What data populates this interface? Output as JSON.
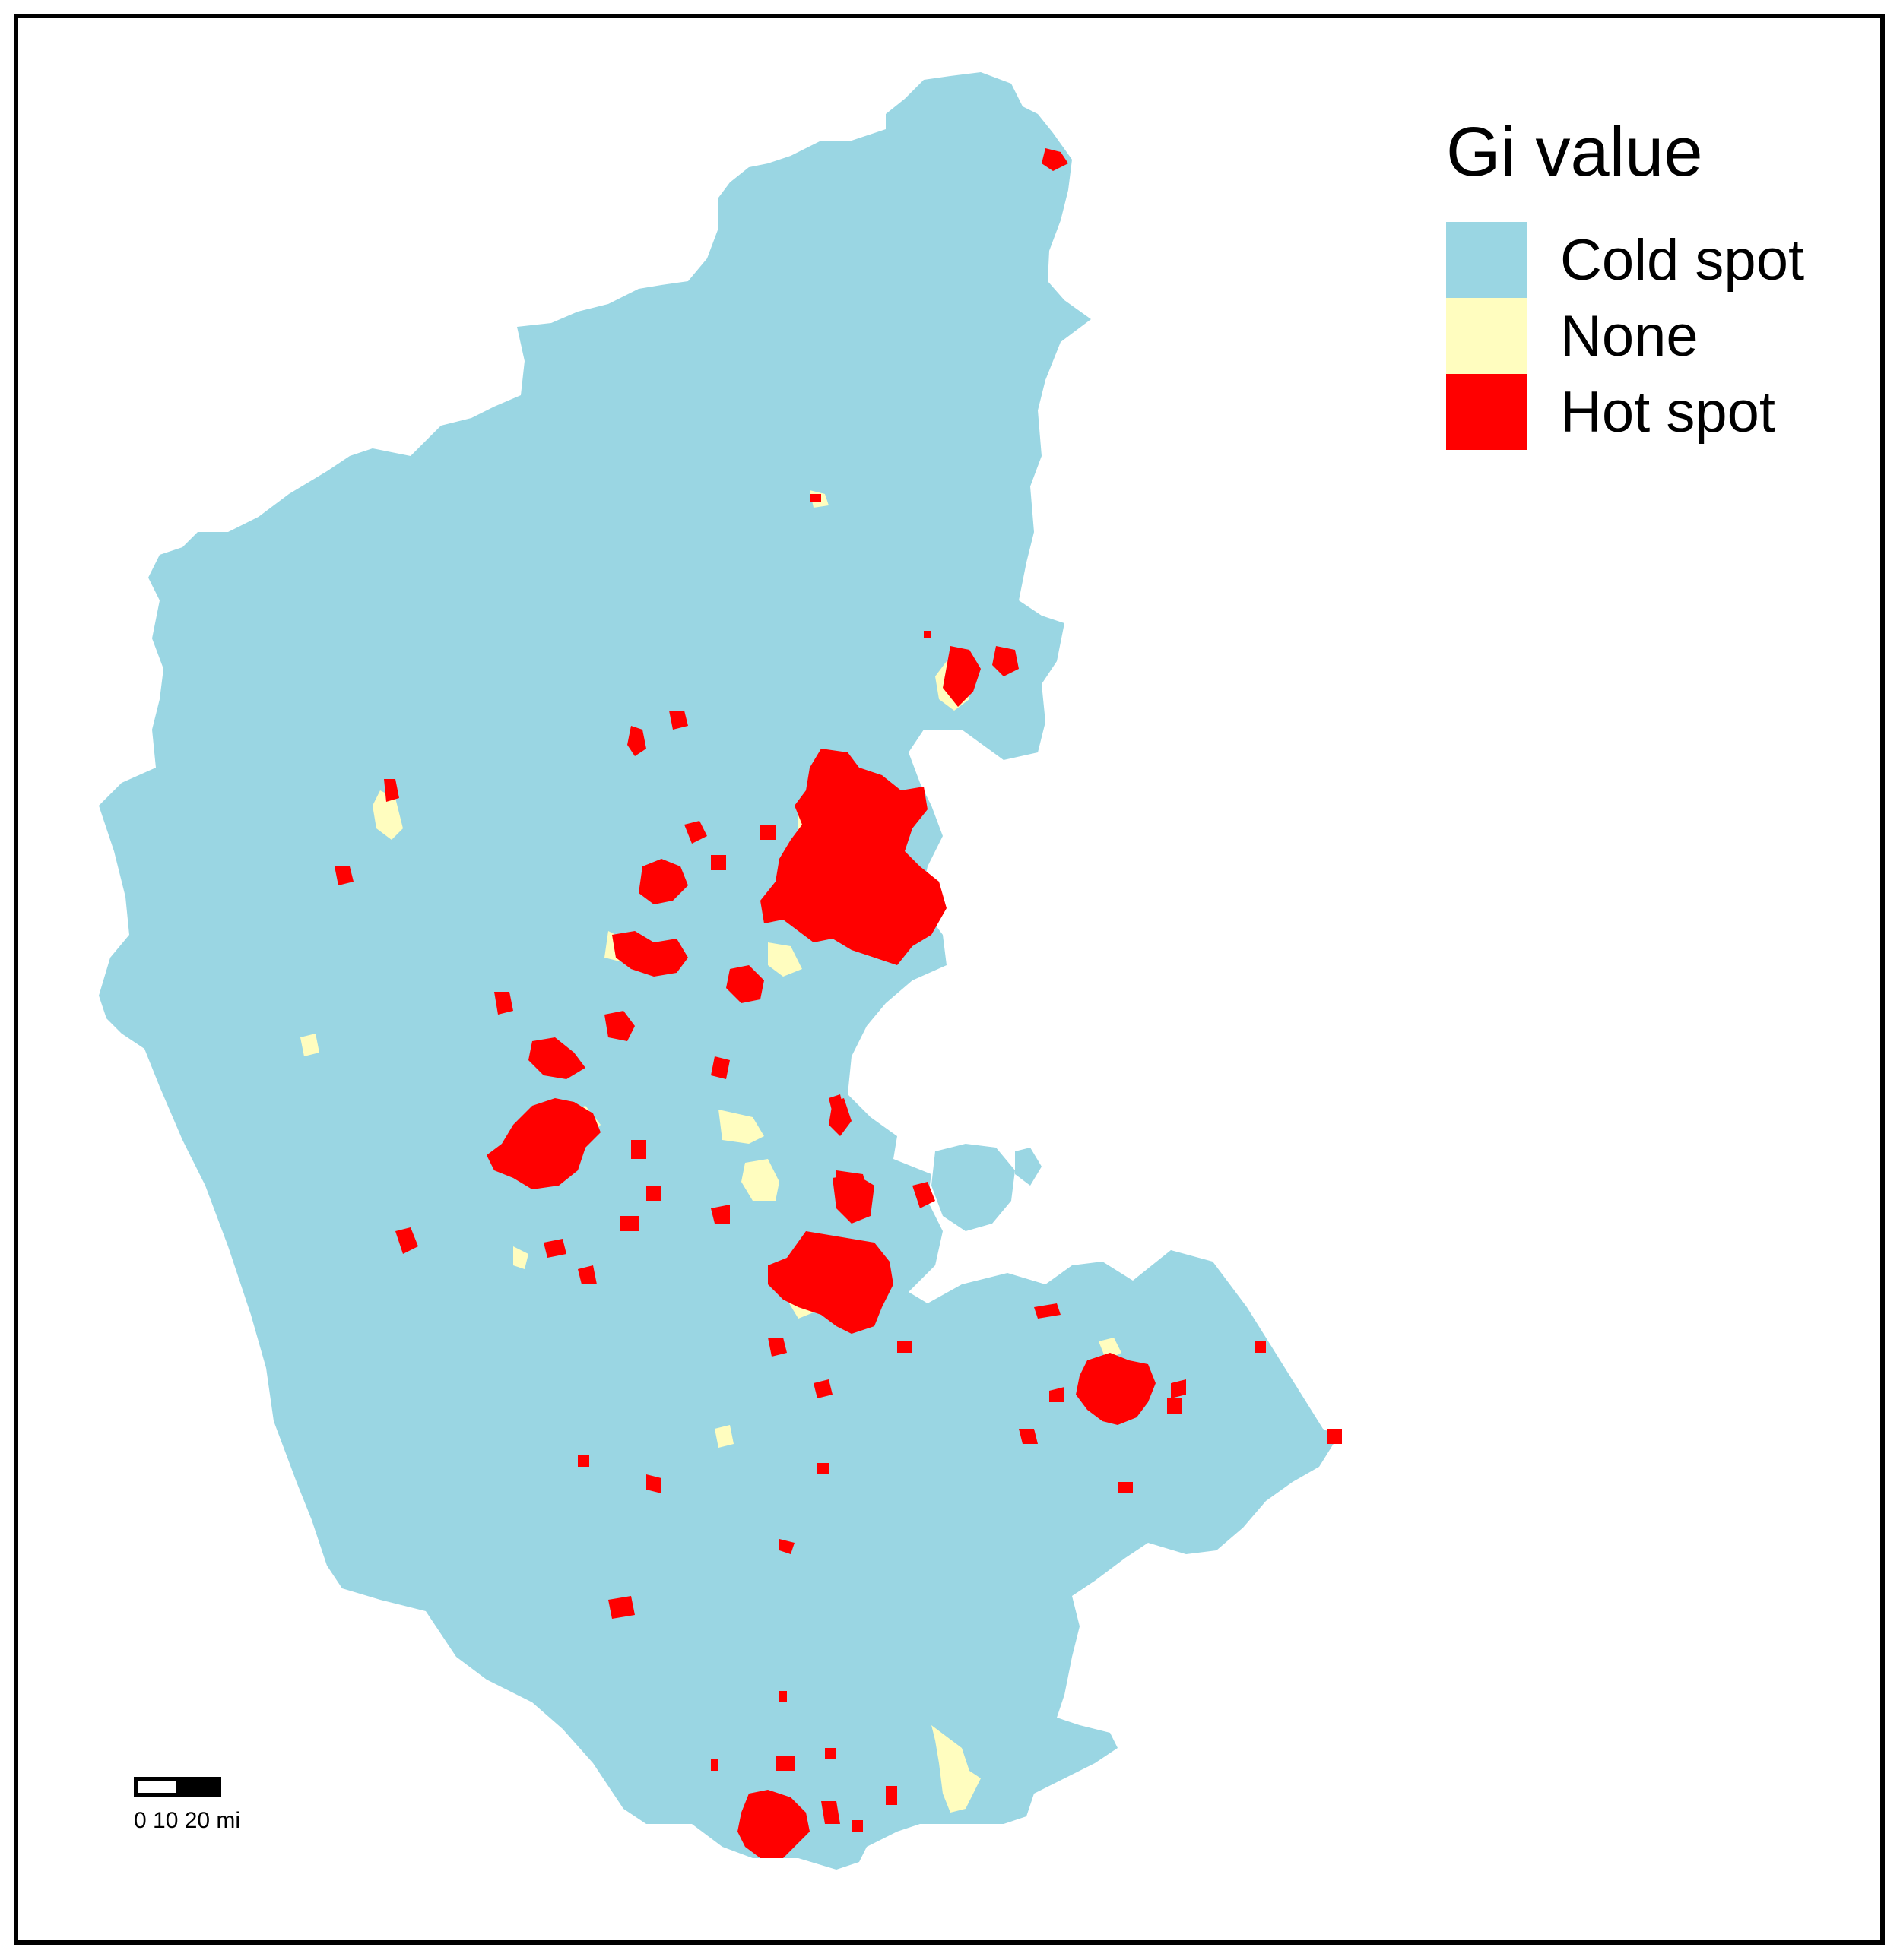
{
  "legend": {
    "title": "Gi value",
    "items": [
      {
        "label": "Cold spot",
        "color": "#9ad6e3"
      },
      {
        "label": "None",
        "color": "#fffdbf"
      },
      {
        "label": "Hot spot",
        "color": "#ff0000"
      }
    ]
  },
  "scale_bar": {
    "labels": "0  10 20 mi"
  },
  "colors": {
    "background": "#ffffff",
    "frame": "#000000",
    "cold": "#9ad6e3",
    "none": "#fffdbf",
    "hot": "#ff0000"
  }
}
